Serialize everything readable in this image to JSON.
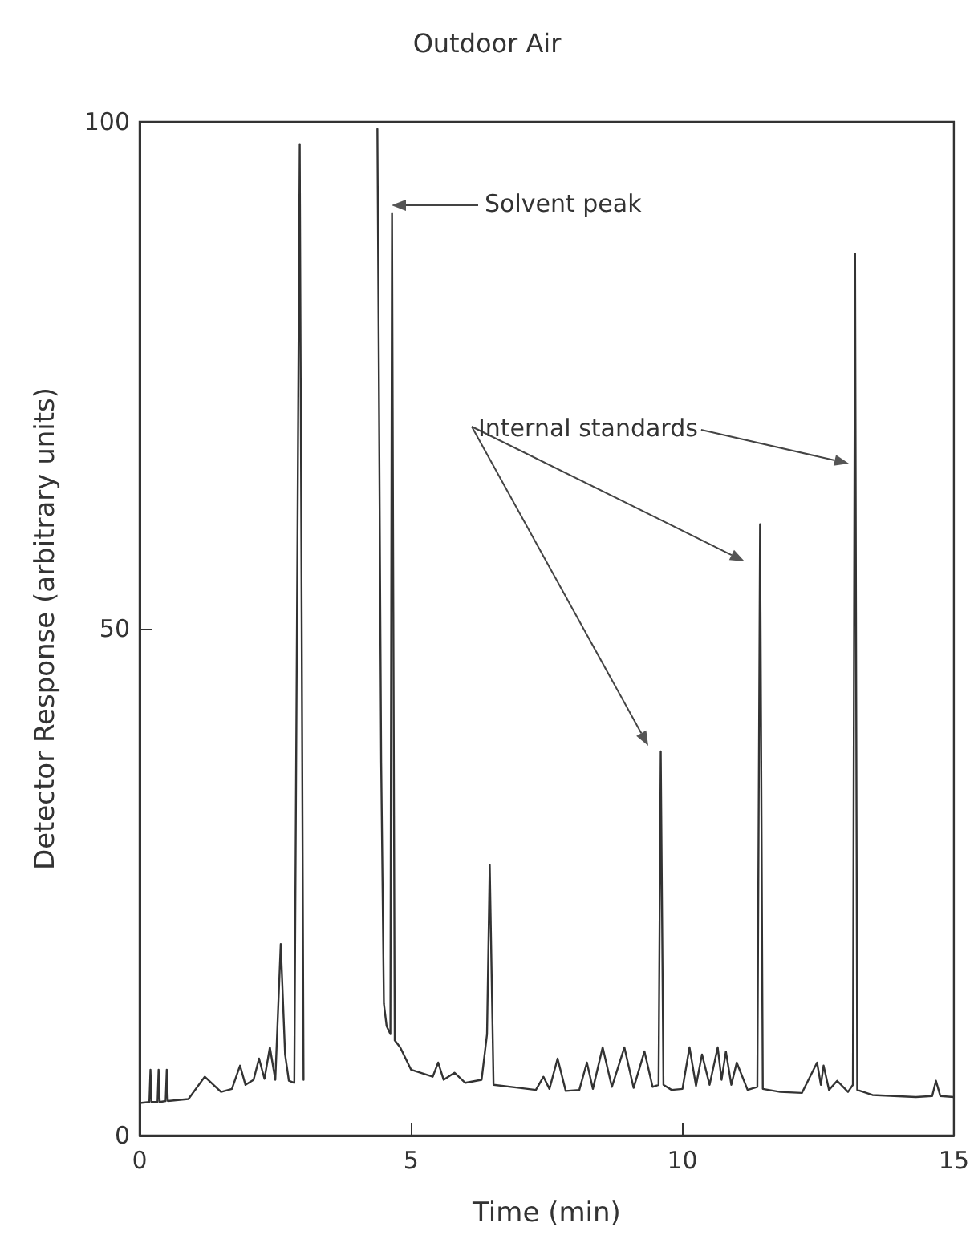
{
  "chart_data": {
    "type": "line",
    "title": "Outdoor Air",
    "xlabel": "Time (min)",
    "ylabel": "Detector Response (arbitrary units)",
    "x": [
      0,
      0.18,
      0.2,
      0.22,
      0.33,
      0.35,
      0.37,
      0.48,
      0.5,
      0.52,
      0.9,
      1.2,
      1.5,
      1.7,
      1.85,
      1.95,
      2.1,
      2.2,
      2.3,
      2.4,
      2.5,
      2.6,
      2.68,
      2.75,
      2.85,
      2.95,
      3.02,
      3.5,
      4.38,
      4.45,
      4.5,
      4.55,
      4.62,
      4.65,
      4.7,
      4.8,
      5.0,
      5.4,
      5.5,
      5.6,
      5.8,
      6.0,
      6.3,
      6.4,
      6.45,
      6.52,
      7.0,
      7.3,
      7.44,
      7.55,
      7.7,
      7.85,
      8.1,
      8.24,
      8.35,
      8.53,
      8.7,
      8.93,
      9.1,
      9.3,
      9.45,
      9.56,
      9.6,
      9.65,
      9.8,
      10.0,
      10.13,
      10.25,
      10.36,
      10.5,
      10.65,
      10.72,
      10.8,
      10.9,
      11.0,
      11.2,
      11.38,
      11.43,
      11.48,
      11.8,
      12.2,
      12.48,
      12.55,
      12.6,
      12.7,
      12.85,
      13.05,
      13.14,
      13.18,
      13.22,
      13.5,
      14.3,
      14.6,
      14.67,
      14.75,
      15
    ],
    "series": [
      {
        "color": "#333333",
        "values": [
          3.2,
          3.3,
          6.5,
          3.3,
          3.3,
          6.5,
          3.3,
          3.4,
          6.5,
          3.4,
          3.6,
          5.8,
          4.3,
          4.6,
          6.9,
          5.0,
          5.5,
          7.6,
          5.6,
          8.7,
          5.5,
          18.9,
          8,
          5.4,
          5.2,
          97.8,
          5.5,
          null,
          99.3,
          36.8,
          13,
          10.8,
          10,
          91,
          9.4,
          8.7,
          6.5,
          5.8,
          7.2,
          5.5,
          6.2,
          5.2,
          5.5,
          10,
          26.7,
          5,
          4.7,
          4.5,
          5.8,
          4.6,
          7.6,
          4.4,
          4.5,
          7.2,
          4.6,
          8.7,
          4.8,
          8.7,
          4.7,
          8.3,
          4.8,
          5,
          37.9,
          5,
          4.5,
          4.6,
          8.7,
          4.9,
          8,
          5,
          8.7,
          5.5,
          8.3,
          5,
          7.2,
          4.5,
          4.8,
          60.3,
          4.6,
          4.3,
          4.2,
          7.2,
          5,
          6.9,
          4.5,
          5.4,
          4.3,
          5,
          87,
          4.5,
          4,
          3.8,
          3.9,
          5.4,
          3.9,
          3.8
        ]
      }
    ],
    "xlim": [
      0,
      15
    ],
    "xticks": [
      0,
      5,
      10,
      15
    ],
    "ylim": [
      0,
      100
    ],
    "yticks": [
      0,
      50,
      100
    ],
    "grid": false,
    "marker": "none",
    "line_style": "solid",
    "annotations": [
      "Solvent peak",
      "Internal standards"
    ]
  }
}
